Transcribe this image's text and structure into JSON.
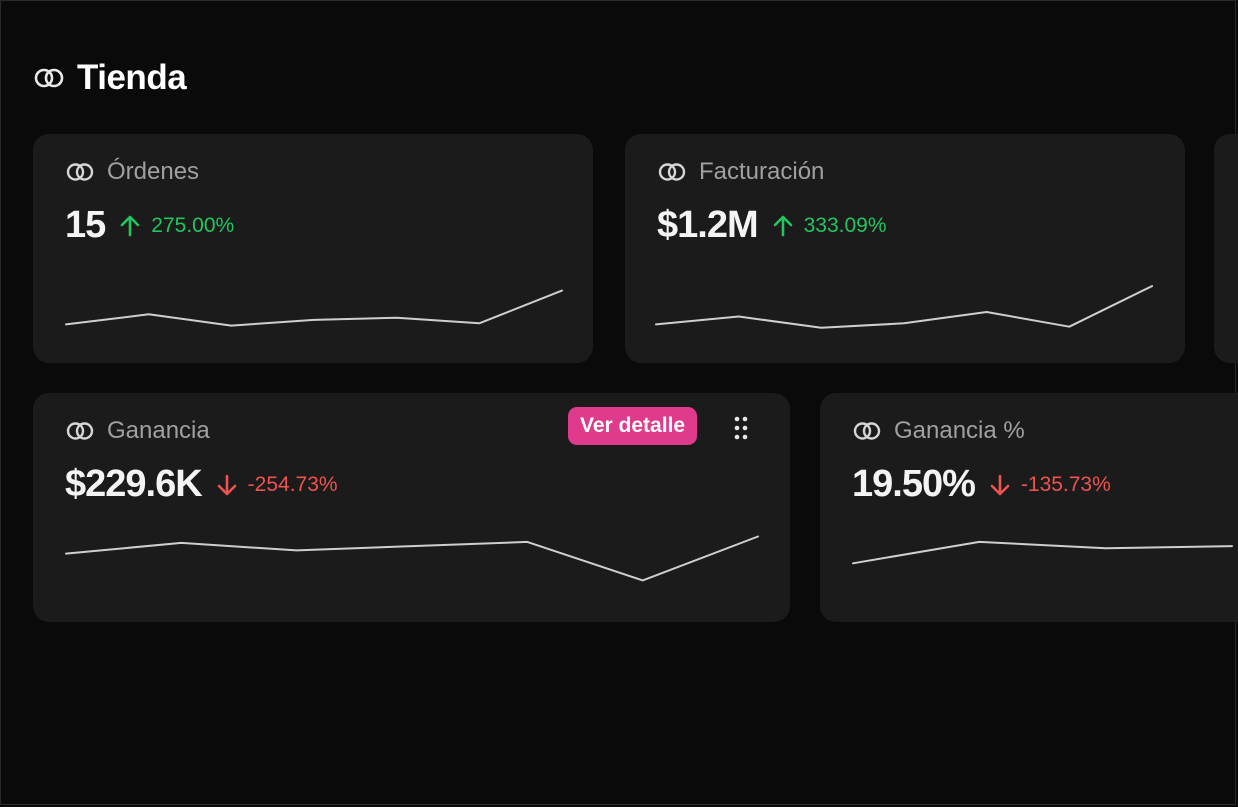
{
  "page": {
    "title": "Tienda",
    "title_icon": "link-icon"
  },
  "colors": {
    "background": "#0a0a0a",
    "card": "#1b1b1b",
    "positive": "#22c55e",
    "negative": "#ef5350",
    "accent": "#e03a8c",
    "sparkline": "#cfcfcf"
  },
  "cards": [
    {
      "label": "Órdenes",
      "icon": "link-icon",
      "value": "15",
      "change": "275.00%",
      "direction": "up",
      "sparkline": [
        20,
        29,
        19,
        24,
        26,
        21,
        50
      ]
    },
    {
      "label": "Facturación",
      "icon": "link-icon",
      "value": "$1.2M",
      "change": "333.09%",
      "direction": "up",
      "sparkline": [
        20,
        27,
        17,
        21,
        31,
        18,
        54
      ]
    },
    {
      "label": "Ganancia",
      "icon": "link-icon",
      "value": "$229.6K",
      "change": "-254.73%",
      "direction": "down",
      "detail_button": "Ver detalle",
      "drag_icon": "drag-handle-icon",
      "sparkline": [
        47,
        57,
        50,
        54,
        58,
        22,
        63
      ]
    },
    {
      "label": "Ganancia %",
      "icon": "link-icon",
      "value": "19.50%",
      "change": "-135.73%",
      "direction": "down",
      "sparkline": [
        38,
        58,
        52,
        54
      ]
    }
  ]
}
